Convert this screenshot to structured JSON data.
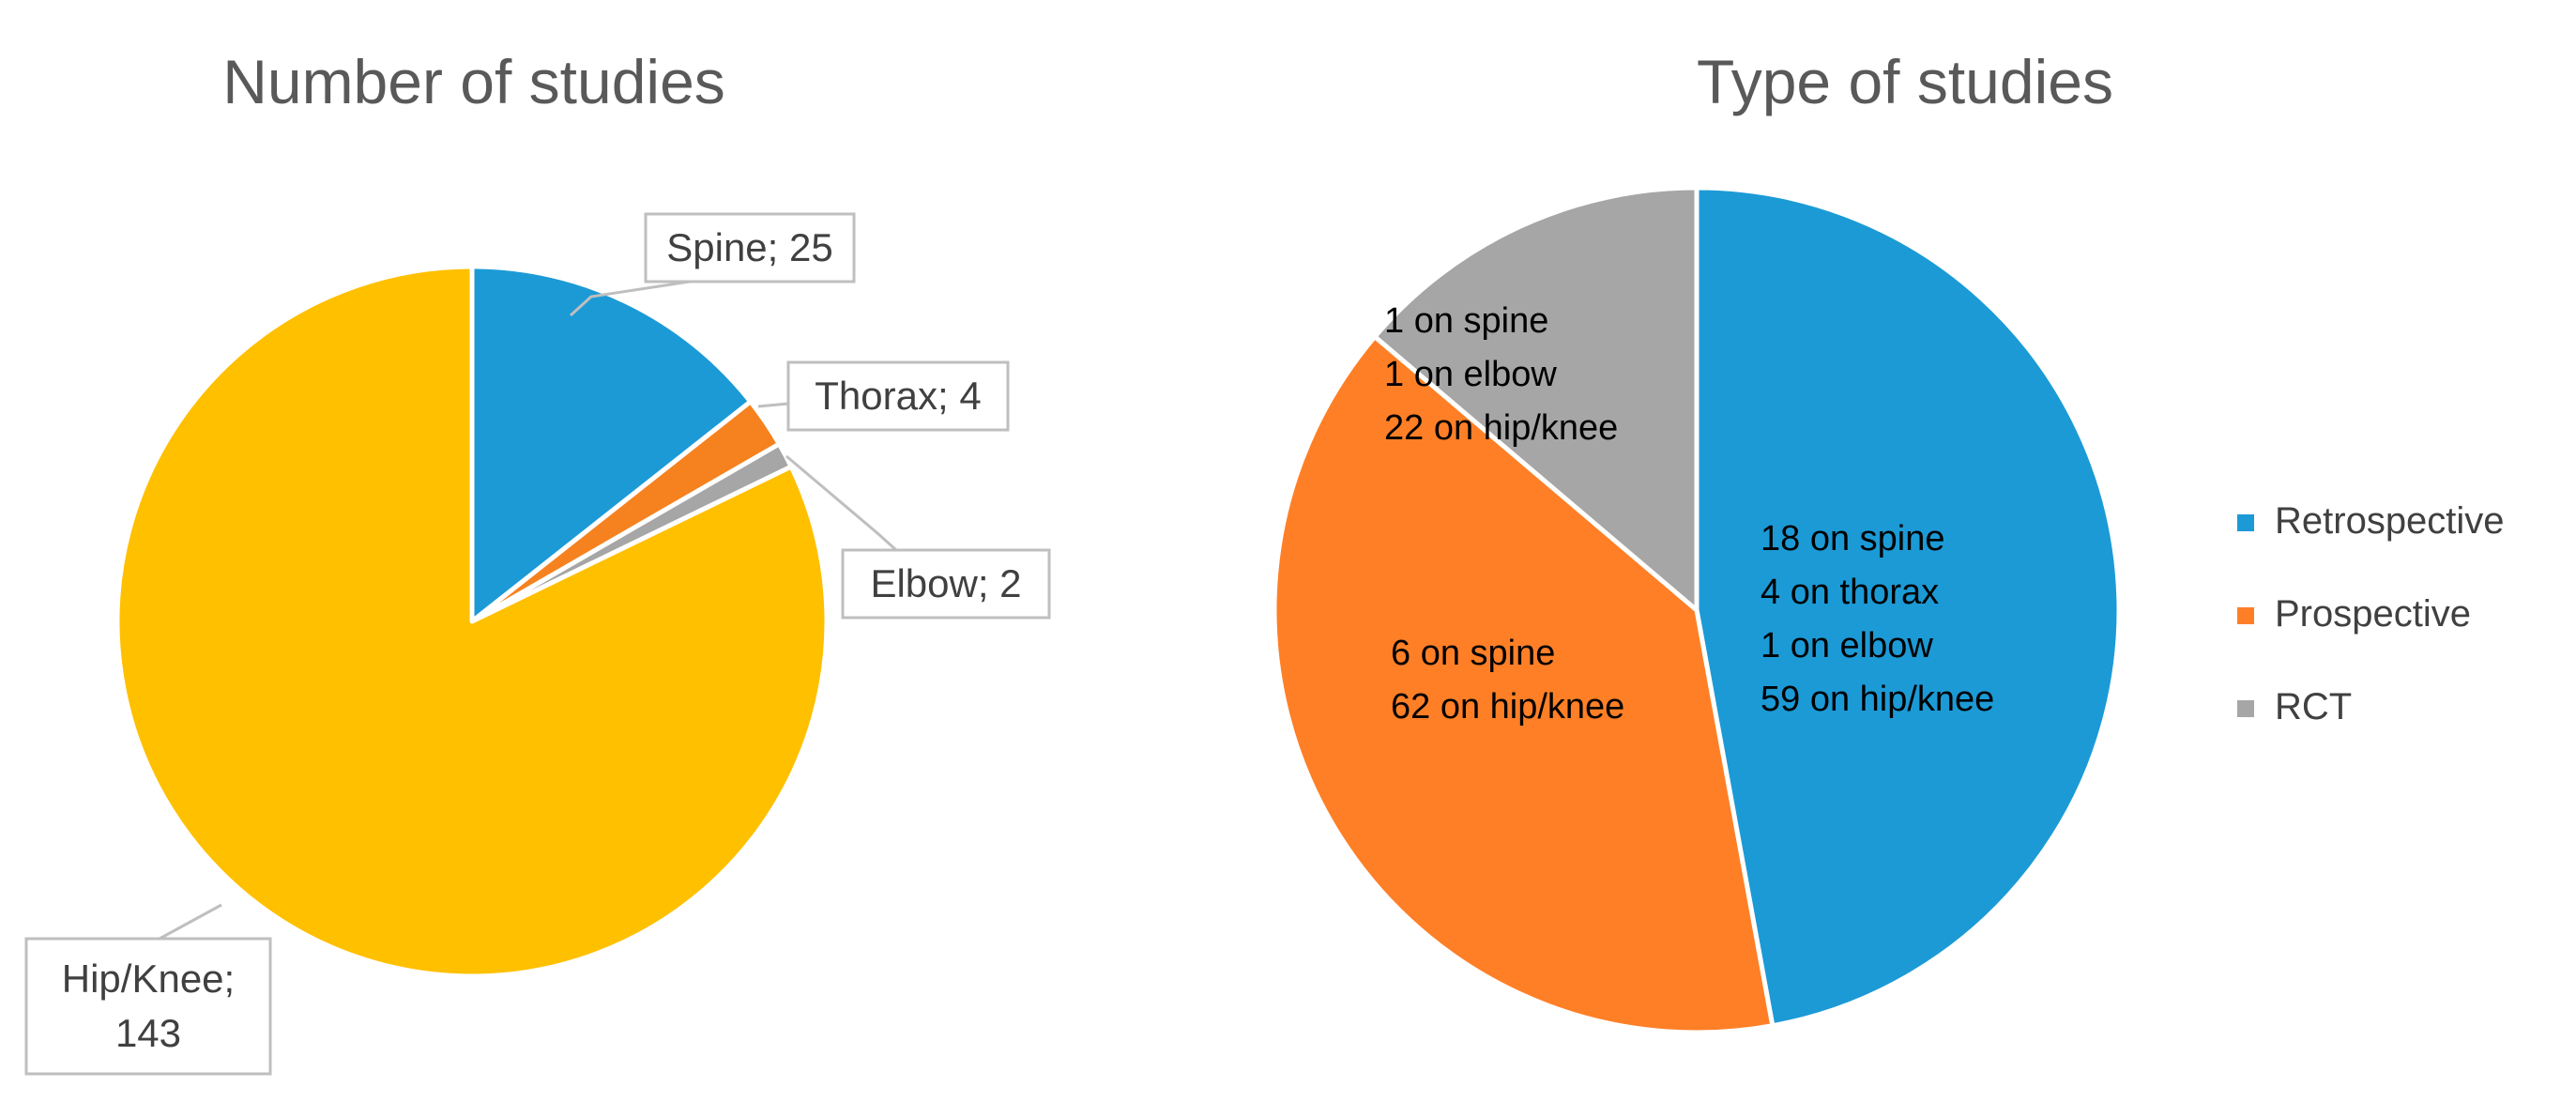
{
  "chart_data": [
    {
      "type": "pie",
      "title": "Number of studies",
      "slices": [
        {
          "label": "Spine",
          "value": 25,
          "color": "#1C9AD6",
          "callout": "Spine; 25"
        },
        {
          "label": "Thorax",
          "value": 4,
          "color": "#F5821F",
          "callout": "Thorax; 4"
        },
        {
          "label": "Elbow",
          "value": 2,
          "color": "#A6A6A6",
          "callout": "Elbow; 2"
        },
        {
          "label": "Hip/Knee",
          "value": 143,
          "color": "#FFC000",
          "callout_lines": [
            "Hip/Knee;",
            "143"
          ]
        }
      ]
    },
    {
      "type": "pie",
      "title": "Type of studies",
      "slices": [
        {
          "label": "Retrospective",
          "value": 82,
          "color": "#1C9AD6",
          "lines": [
            "18 on spine",
            "4 on thorax",
            "1 on elbow",
            "59 on hip/knee"
          ]
        },
        {
          "label": "Prospective",
          "value": 68,
          "color": "#FF7F27",
          "lines": [
            "6 on spine",
            "62 on hip/knee"
          ]
        },
        {
          "label": "RCT",
          "value": 24,
          "color": "#A6A6A6",
          "lines": [
            "1 on spine",
            "1 on elbow",
            "22 on hip/knee"
          ]
        }
      ],
      "legend": {
        "position": "right",
        "items": [
          "Retrospective",
          "Prospective",
          "RCT"
        ]
      }
    }
  ]
}
